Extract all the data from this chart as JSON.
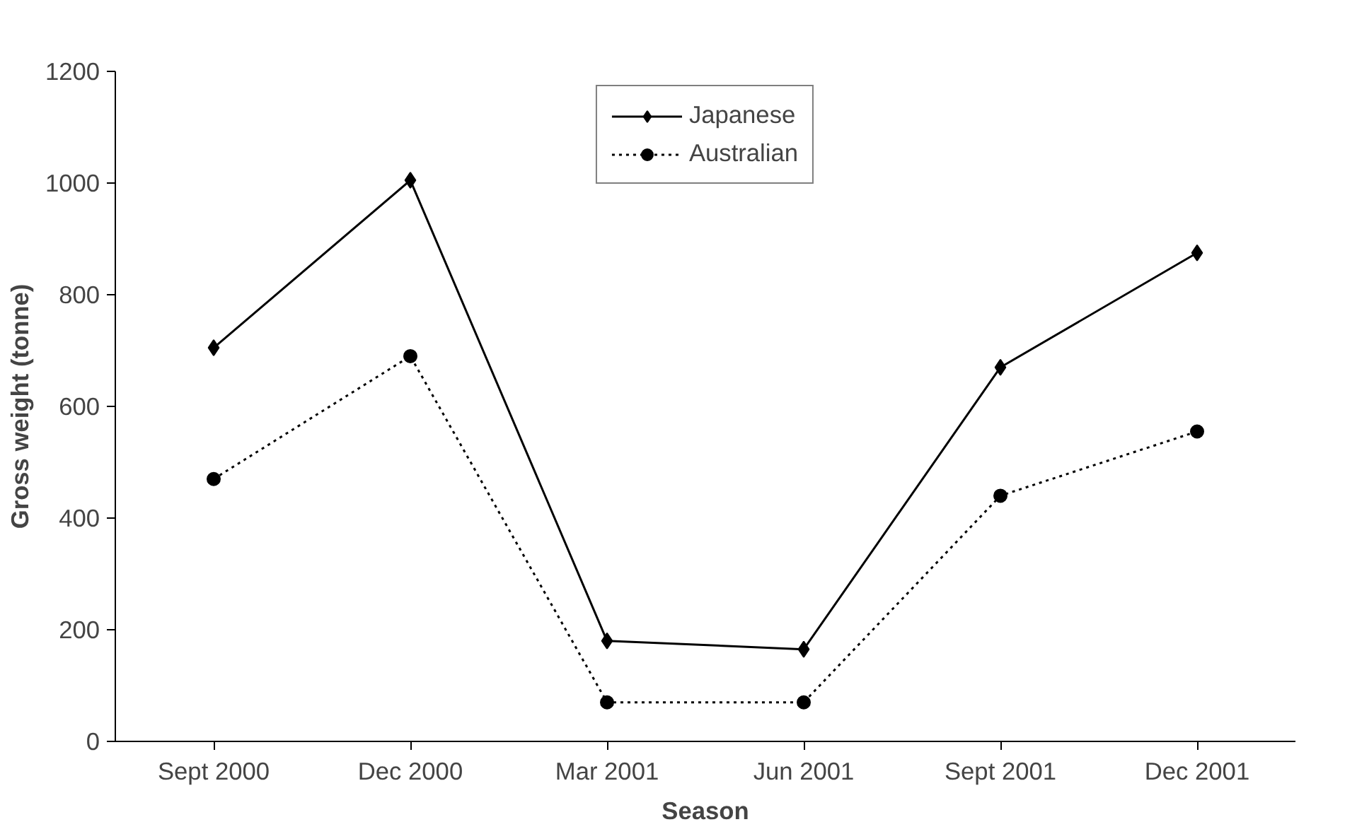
{
  "chart_data": {
    "type": "line",
    "xlabel": "Season",
    "ylabel": "Gross weight (tonne)",
    "categories": [
      "Sept 2000",
      "Dec 2000",
      "Mar 2001",
      "Jun 2001",
      "Sept 2001",
      "Dec 2001"
    ],
    "series": [
      {
        "name": "Japanese",
        "color": "#000000",
        "marker": "diamond",
        "line_style": "solid",
        "values": [
          705,
          1005,
          180,
          165,
          670,
          875
        ]
      },
      {
        "name": "Australian",
        "color": "#000000",
        "marker": "circle",
        "line_style": "dotted",
        "values": [
          470,
          690,
          70,
          70,
          440,
          555
        ]
      }
    ],
    "ylim": [
      0,
      1200
    ],
    "yticks": [
      0,
      200,
      400,
      600,
      800,
      1000,
      1200
    ],
    "grid": false,
    "legend": "top"
  }
}
